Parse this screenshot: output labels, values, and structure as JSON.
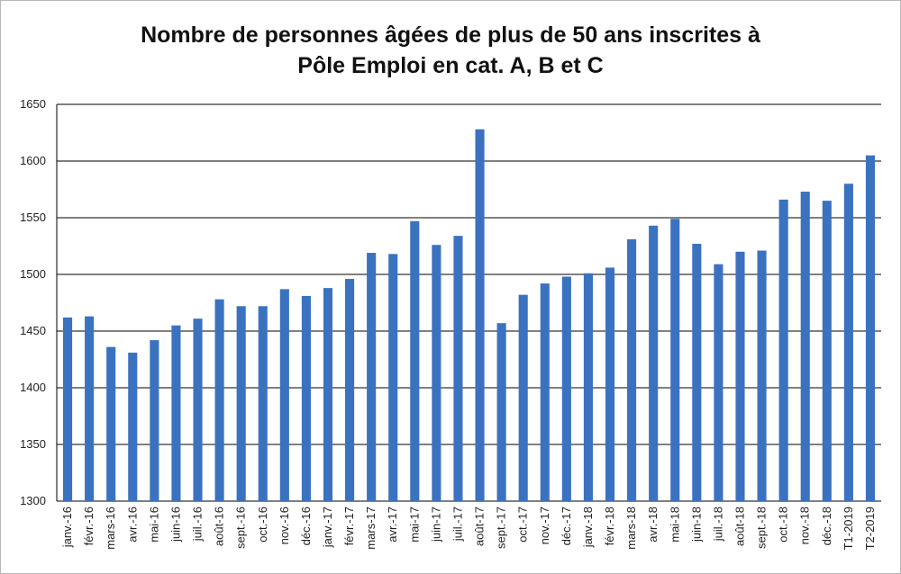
{
  "chart_data": {
    "type": "bar",
    "title": "Nombre de personnes âgées de plus de 50 ans inscrites à\nPôle Emploi en cat. A, B et C",
    "xlabel": "",
    "ylabel": "",
    "ylim": [
      1300,
      1650
    ],
    "yticks": [
      "1300",
      "1350",
      "1400",
      "1450",
      "1500",
      "1550",
      "1600",
      "1650"
    ],
    "grid": true,
    "legend": "none",
    "bar_color": "#3b72c0",
    "categories": [
      "janv.-16",
      "févr.-16",
      "mars-16",
      "avr.-16",
      "mai-16",
      "juin-16",
      "juil.-16",
      "août-16",
      "sept.-16",
      "oct.-16",
      "nov.-16",
      "déc.-16",
      "janv.-17",
      "févr.-17",
      "mars-17",
      "avr.-17",
      "mai-17",
      "juin-17",
      "juil.-17",
      "août-17",
      "sept.-17",
      "oct.-17",
      "nov.-17",
      "déc.-17",
      "janv.-18",
      "févr.-18",
      "mars-18",
      "avr.-18",
      "mai-18",
      "juin-18",
      "juil.-18",
      "août-18",
      "sept.-18",
      "oct.-18",
      "nov.-18",
      "déc.-18",
      "T1-2019",
      "T2-2019"
    ],
    "values": [
      1462,
      1463,
      1436,
      1431,
      1442,
      1455,
      1461,
      1478,
      1472,
      1472,
      1487,
      1481,
      1488,
      1496,
      1519,
      1518,
      1547,
      1526,
      1534,
      1628,
      1457,
      1482,
      1492,
      1498,
      1501,
      1506,
      1531,
      1543,
      1549,
      1527,
      1509,
      1520,
      1521,
      1566,
      1573,
      1565,
      1580,
      1605
    ]
  }
}
